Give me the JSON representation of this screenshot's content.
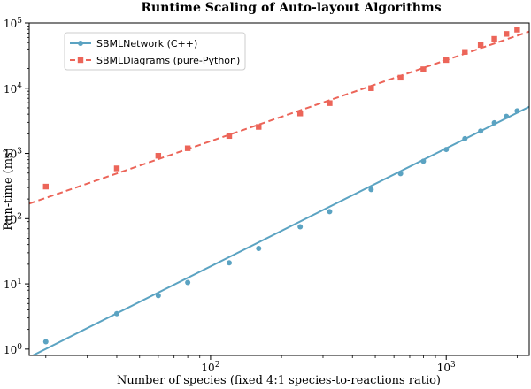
{
  "chart_data": {
    "type": "scatter",
    "title": "Runtime Scaling of Auto-layout Algorithms",
    "xlabel": "Number of species (fixed 4:1 species-to-reactions ratio)",
    "ylabel": "Run-time (ms)",
    "xscale": "log",
    "yscale": "log",
    "xlim": [
      17,
      2250
    ],
    "ylim": [
      0.8,
      100000
    ],
    "grid": false,
    "legend_position": "top-left",
    "x_ticks": [
      {
        "value": 100,
        "base": "10",
        "exp": "2"
      },
      {
        "value": 1000,
        "base": "10",
        "exp": "3"
      }
    ],
    "y_ticks": [
      {
        "value": 1,
        "base": "10",
        "exp": "0"
      },
      {
        "value": 10,
        "base": "10",
        "exp": "1"
      },
      {
        "value": 100,
        "base": "10",
        "exp": "2"
      },
      {
        "value": 1000,
        "base": "10",
        "exp": "3"
      },
      {
        "value": 10000,
        "base": "10",
        "exp": "4"
      },
      {
        "value": 100000,
        "base": "10",
        "exp": "5"
      }
    ],
    "series": [
      {
        "name": "SBMLNetwork (C++)",
        "color": "#5ba3c2",
        "marker": "circle",
        "line_style": "solid",
        "points": [
          [
            20,
            1.3
          ],
          [
            40,
            3.5
          ],
          [
            60,
            6.6
          ],
          [
            80,
            10.5
          ],
          [
            120,
            21
          ],
          [
            160,
            35
          ],
          [
            240,
            75
          ],
          [
            320,
            128
          ],
          [
            480,
            280
          ],
          [
            640,
            490
          ],
          [
            800,
            760
          ],
          [
            1000,
            1150
          ],
          [
            1200,
            1680
          ],
          [
            1400,
            2200
          ],
          [
            1600,
            2950
          ],
          [
            1800,
            3700
          ],
          [
            2000,
            4500
          ]
        ],
        "fit_line": [
          [
            17,
            0.75
          ],
          [
            2250,
            5200
          ]
        ]
      },
      {
        "name": "SBMLDiagrams (pure-Python)",
        "color": "#ec6559",
        "marker": "square",
        "line_style": "dashed",
        "points": [
          [
            20,
            310
          ],
          [
            40,
            590
          ],
          [
            60,
            920
          ],
          [
            80,
            1200
          ],
          [
            120,
            1850
          ],
          [
            160,
            2550
          ],
          [
            240,
            4100
          ],
          [
            320,
            5900
          ],
          [
            480,
            10000
          ],
          [
            640,
            14500
          ],
          [
            800,
            19500
          ],
          [
            1000,
            27000
          ],
          [
            1200,
            36000
          ],
          [
            1400,
            46000
          ],
          [
            1600,
            57000
          ],
          [
            1800,
            68000
          ],
          [
            2000,
            79000
          ]
        ],
        "fit_line": [
          [
            17,
            170
          ],
          [
            2250,
            74000
          ]
        ]
      }
    ]
  }
}
